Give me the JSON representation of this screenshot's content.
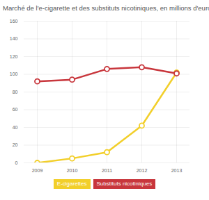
{
  "chart_data": {
    "type": "line",
    "title": "Marché de l'e-cigarette et des substituts nicotiniques, en millions d'euros",
    "categories": [
      "2009",
      "2010",
      "2011",
      "2012",
      "2013"
    ],
    "series": [
      {
        "name": "E-cigarettes",
        "color": "#f2cf2a",
        "marker": "circle",
        "values": [
          0,
          5,
          12,
          42,
          102
        ]
      },
      {
        "name": "Substituts nicotiniques",
        "color": "#c8363c",
        "marker": "circle",
        "values": [
          92,
          94,
          106,
          108,
          101
        ]
      }
    ],
    "ylim": [
      0,
      160
    ],
    "yticks": [
      0,
      20,
      40,
      60,
      80,
      100,
      120,
      140,
      160
    ],
    "grid": true,
    "legend": "bottom"
  }
}
